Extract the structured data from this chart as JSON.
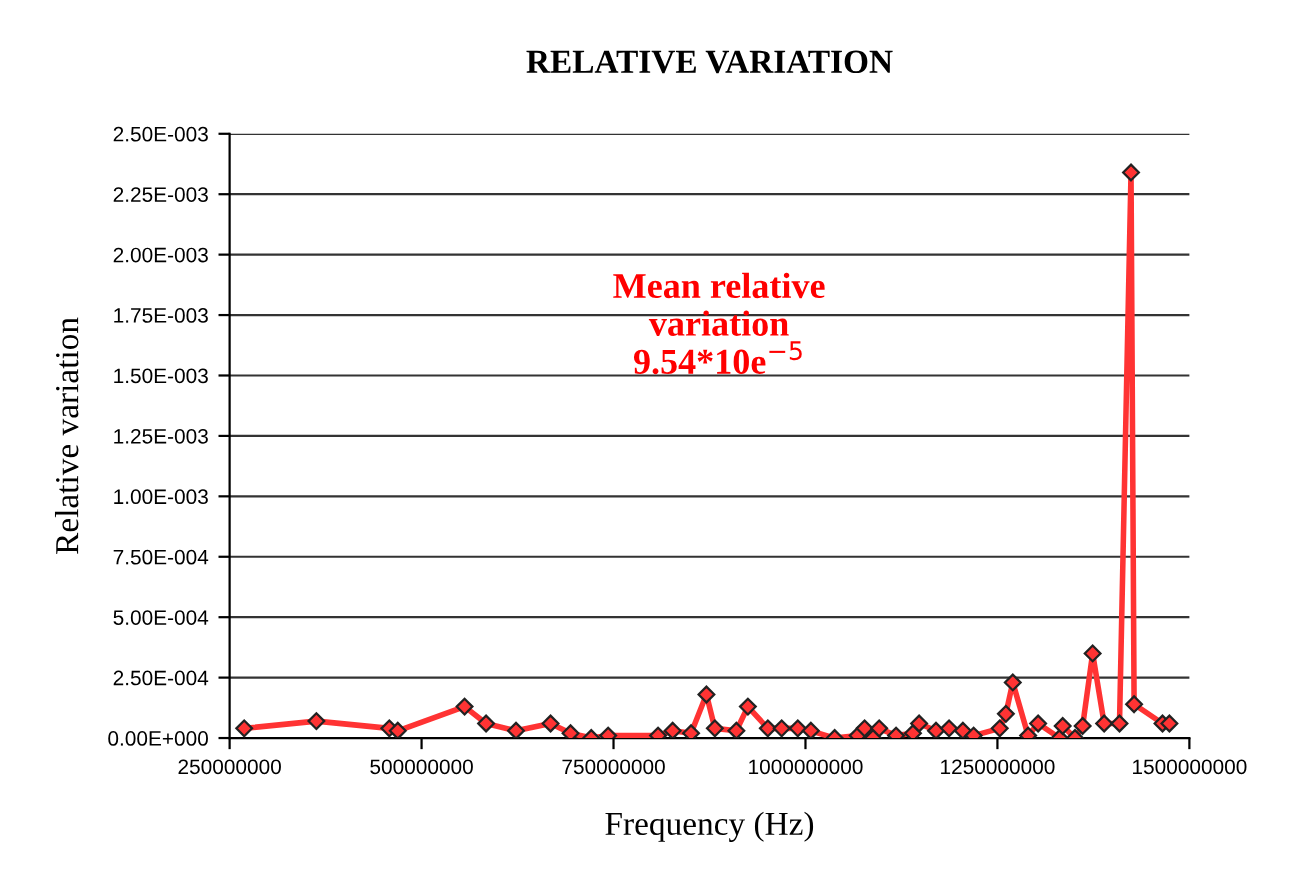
{
  "chart_data": {
    "type": "line",
    "title": "RELATIVE VARIATION",
    "xlabel": "Frequency (Hz)",
    "ylabel": "Relative variation",
    "annotations": [
      "Mean relative\nvariation\n9.54*10e$^{−5}$"
    ],
    "x": [
      269000000,
      363000000,
      458000000,
      469000000,
      556000000,
      584000000,
      623000000,
      668000000,
      694000000,
      721000000,
      743000000,
      808000000,
      827000000,
      851000000,
      871000000,
      882000000,
      910000000,
      925000000,
      951000000,
      969000000,
      990000000,
      1007000000,
      1038000000,
      1068000000,
      1077000000,
      1088000000,
      1096000000,
      1118000000,
      1140000000,
      1148000000,
      1170000000,
      1187000000,
      1205000000,
      1219000000,
      1253000000,
      1261000000,
      1270000000,
      1290000000,
      1303000000,
      1331000000,
      1335000000,
      1351000000,
      1361000000,
      1374000000,
      1389000000,
      1409000000,
      1424000000,
      1428000000,
      1465000000,
      1474000000
    ],
    "series": [
      {
        "color": "#ff3333",
        "values": [
          4e-05,
          7e-05,
          4e-05,
          3e-05,
          0.00013,
          6e-05,
          3e-05,
          6e-05,
          2e-05,
          0.0,
          1e-05,
          1e-05,
          3e-05,
          2e-05,
          0.00018,
          4e-05,
          3e-05,
          0.00013,
          4e-05,
          4e-05,
          4e-05,
          3e-05,
          0.0,
          1e-05,
          4e-05,
          0.0,
          4e-05,
          1e-05,
          2e-05,
          6e-05,
          3e-05,
          4e-05,
          3e-05,
          1e-05,
          4e-05,
          0.0001,
          0.00023,
          1e-05,
          6e-05,
          0.0,
          5e-05,
          0.0,
          5e-05,
          0.00035,
          6e-05,
          6e-05,
          0.00234,
          0.00014,
          6e-05,
          6e-05
        ]
      }
    ],
    "xlim": [
      250000000,
      1500000000
    ],
    "xticks": [
      250000000,
      500000000,
      750000000,
      1000000000,
      1250000000,
      1500000000
    ],
    "ylim": [
      0,
      0.0025
    ],
    "yticks": [
      {
        "value": 0,
        "label": "0.00E+000"
      },
      {
        "value": 0.00025,
        "label": "2.50E-004"
      },
      {
        "value": 0.0005,
        "label": "5.00E-004"
      },
      {
        "value": 0.00075,
        "label": "7.50E-004"
      },
      {
        "value": 0.001,
        "label": "1.00E-003"
      },
      {
        "value": 0.00125,
        "label": "1.25E-003"
      },
      {
        "value": 0.0015,
        "label": "1.50E-003"
      },
      {
        "value": 0.00175,
        "label": "1.75E-003"
      },
      {
        "value": 0.002,
        "label": "2.00E-003"
      },
      {
        "value": 0.00225,
        "label": "2.25E-003"
      },
      {
        "value": 0.0025,
        "label": "2.50E-003"
      }
    ],
    "grid": "y",
    "marker": "diamond",
    "line_style": "solid"
  }
}
